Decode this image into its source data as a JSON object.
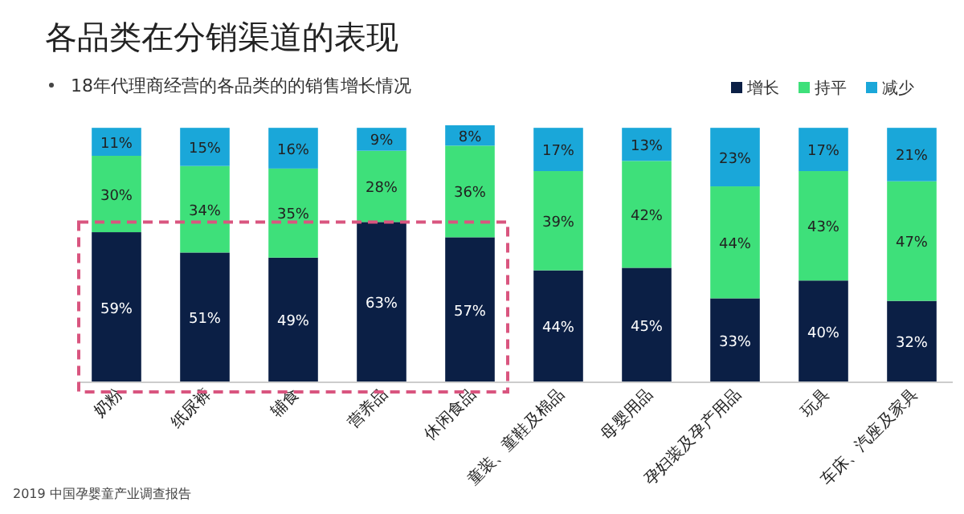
{
  "chart_data": {
    "type": "bar",
    "stacked": true,
    "title": "各品类在分销渠道的表现",
    "subtitle": "18年代理商经营的各品类的的销售增长情况",
    "categories": [
      "奶粉",
      "纸尿裤",
      "辅食",
      "营养品",
      "休闲食品",
      "童装、童鞋及棉品",
      "母婴用品",
      "孕妇装及孕产用品",
      "玩具",
      "车床、汽座及家具"
    ],
    "series": [
      {
        "name": "增长",
        "color": "#0b1f45",
        "values": [
          59,
          51,
          49,
          63,
          57,
          44,
          45,
          33,
          40,
          32
        ],
        "value_labels": [
          "59%",
          "51%",
          "49%",
          "63%",
          "57%",
          "44%",
          "45%",
          "33%",
          "40%",
          "32%"
        ]
      },
      {
        "name": "持平",
        "color": "#3ee07a",
        "values": [
          30,
          34,
          35,
          28,
          36,
          39,
          42,
          44,
          43,
          47
        ],
        "value_labels": [
          "30%",
          "34%",
          "35%",
          "28%",
          "36%",
          "39%",
          "42%",
          "44%",
          "43%",
          "47%"
        ]
      },
      {
        "name": "减少",
        "color": "#1aa7d9",
        "values": [
          11,
          15,
          16,
          9,
          8,
          17,
          13,
          23,
          17,
          21
        ],
        "value_labels": [
          "11%",
          "15%",
          "16%",
          "9%",
          "8%",
          "17%",
          "13%",
          "23%",
          "17%",
          "21%"
        ]
      }
    ],
    "legend": "top right",
    "annotations": [
      "2019 中国孕婴童产业调查报告"
    ]
  }
}
